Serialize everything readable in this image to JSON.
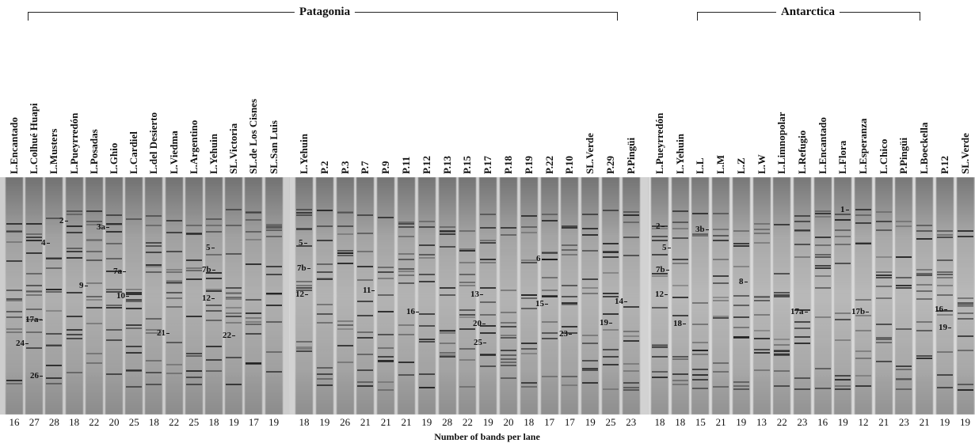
{
  "regions": {
    "patagonia": "Patagonia",
    "antarctica": "Antarctica"
  },
  "panel1_lanes": [
    "L.Encantado",
    "L.Colhué Huapi",
    "L.Musters",
    "L.Pueyrredón",
    "L.Posadas",
    "L.Ghio",
    "L.Cardiel",
    "L.del Desierto",
    "L.Viedma",
    "L.Argentino",
    "L.Yehuin",
    "SL.Victoria",
    "SL.de Los Cisnes",
    "SL.San Luis"
  ],
  "panel1_counts": [
    "16",
    "27",
    "28",
    "18",
    "22",
    "20",
    "25",
    "18",
    "22",
    "25",
    "18",
    "19",
    "17",
    "19"
  ],
  "panel2_lanes": [
    "L.Yehuin",
    "P.2",
    "P.3",
    "P.7",
    "P.9",
    "P.11",
    "P.12",
    "P.13",
    "P.15",
    "P.17",
    "P.18",
    "P.19",
    "P.22",
    "P.10",
    "SL.Verde",
    "P.29",
    "P.Pingüi"
  ],
  "panel2_counts": [
    "18",
    "19",
    "26",
    "21",
    "21",
    "21",
    "19",
    "28",
    "22",
    "19",
    "20",
    "18",
    "17",
    "17",
    "19",
    "25",
    "23"
  ],
  "panel3_lanes": [
    "L.Pueyrredón",
    "L.Yehuin",
    "L.L",
    "L.M",
    "L.Z",
    "L.W",
    "L.Limnopolar",
    "L.Refugio",
    "L.Encantado",
    "L.Flora",
    "L.Esperanza",
    "L.Chico",
    "P.Pingüi",
    "L.Boeckella",
    "P.12",
    "SL.Verde"
  ],
  "panel3_counts": [
    "18",
    "18",
    "15",
    "21",
    "19",
    "13",
    "22",
    "23",
    "16",
    "19",
    "12",
    "21",
    "23",
    "21",
    "19",
    "19"
  ],
  "band_markers": [
    "2",
    "3a",
    "4",
    "7a",
    "9",
    "10",
    "17a",
    "21",
    "24",
    "26",
    "5",
    "7b",
    "12",
    "22",
    "5",
    "7b",
    "12",
    "11",
    "16",
    "13",
    "20",
    "25",
    "6",
    "15",
    "23",
    "19",
    "14",
    "2",
    "5",
    "7b",
    "12",
    "18",
    "3b",
    "8",
    "17a",
    "17b",
    "1",
    "16",
    "19"
  ],
  "x_axis_label": "Number of bands per lane"
}
